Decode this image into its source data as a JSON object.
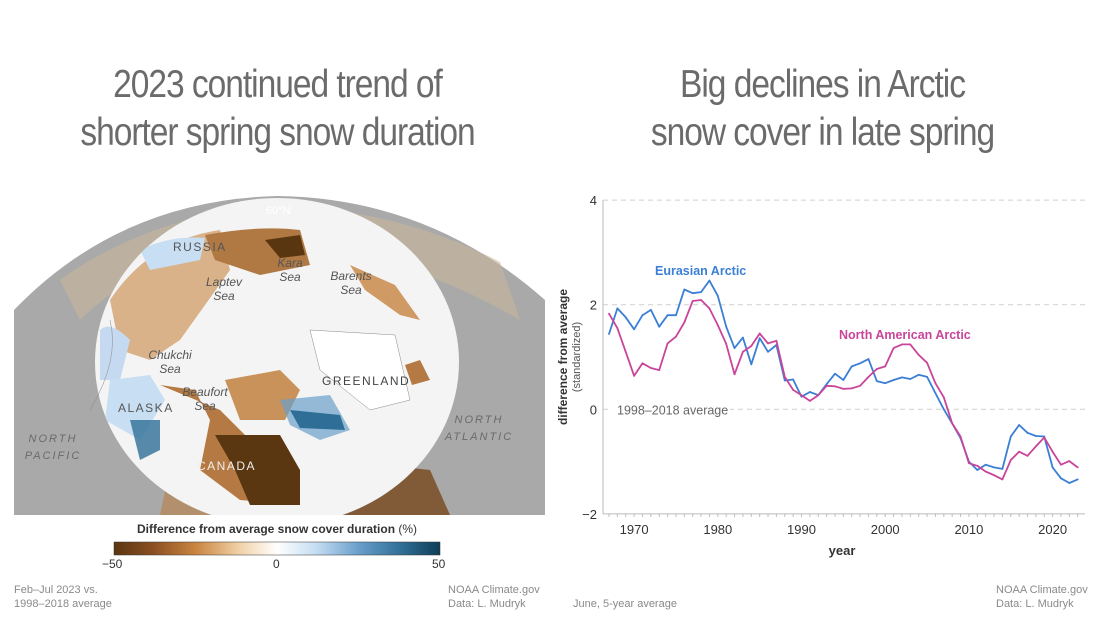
{
  "left": {
    "title_line1": "2023 continued trend of",
    "title_line2": "shorter spring snow duration",
    "map_labels": {
      "latitude": "60°N",
      "russia": "RUSSIA",
      "laptev": "Laptev Sea",
      "kara": "Kara Sea",
      "barents": "Barents Sea",
      "chukchi": "Chukchi Sea",
      "beaufort": "Beaufort Sea",
      "alaska": "ALASKA",
      "greenland": "GREENLAND",
      "canada": "CANADA",
      "north_pacific": "NORTH PACIFIC",
      "north_atlantic": "NORTH ATLANTIC"
    },
    "legend": {
      "title": "Difference from average snow cover duration",
      "unit": "(%)",
      "min": "−50",
      "mid": "0",
      "max": "50",
      "colors": [
        "#5a3610",
        "#a5602a",
        "#dd9a52",
        "#f7e3c6",
        "#ffffff",
        "#c8dff3",
        "#6a9fcb",
        "#2f6f97",
        "#0f3d57"
      ]
    },
    "note_line1": "Feb–Jul 2023 vs.",
    "note_line2": "1998–2018 average",
    "credit_line1": "NOAA Climate.gov",
    "credit_line2": "Data: L. Mudryk"
  },
  "right": {
    "title_line1": "Big declines in Arctic",
    "title_line2": "snow cover in late spring",
    "note": "June, 5-year average",
    "credit_line1": "NOAA Climate.gov",
    "credit_line2": "Data: L. Mudryk"
  },
  "chart_data": {
    "type": "line",
    "xlabel": "year",
    "ylabel": "difference from average",
    "ylabel_sub": "(standardized)",
    "xlim": [
      1967,
      2023
    ],
    "ylim": [
      -2,
      4
    ],
    "yticks": [
      "4",
      "2",
      "0",
      "−2"
    ],
    "ytick_values": [
      4,
      2,
      0,
      -2
    ],
    "xticks": [
      1970,
      1980,
      1990,
      2000,
      2010,
      2020
    ],
    "grid": "horizontal dashed",
    "reference_line": {
      "value": 0,
      "label": "1998–2018 average"
    },
    "x": [
      1967,
      1968,
      1969,
      1970,
      1971,
      1972,
      1973,
      1974,
      1975,
      1976,
      1977,
      1978,
      1979,
      1980,
      1981,
      1982,
      1983,
      1984,
      1985,
      1986,
      1987,
      1988,
      1989,
      1990,
      1991,
      1992,
      1993,
      1994,
      1995,
      1996,
      1997,
      1998,
      1999,
      2000,
      2001,
      2002,
      2003,
      2004,
      2005,
      2006,
      2007,
      2008,
      2009,
      2010,
      2011,
      2012,
      2013,
      2014,
      2015,
      2016,
      2017,
      2018,
      2019,
      2020,
      2021,
      2022,
      2023
    ],
    "series": [
      {
        "name": "Eurasian Arctic",
        "color": "#3a7fd5",
        "values": [
          1.44,
          1.93,
          1.76,
          1.53,
          1.8,
          1.9,
          1.58,
          1.8,
          1.8,
          2.29,
          2.22,
          2.24,
          2.46,
          2.17,
          1.58,
          1.17,
          1.37,
          0.86,
          1.36,
          1.1,
          1.23,
          0.55,
          0.57,
          0.24,
          0.33,
          0.27,
          0.48,
          0.68,
          0.56,
          0.82,
          0.88,
          0.96,
          0.54,
          0.5,
          0.56,
          0.61,
          0.58,
          0.66,
          0.62,
          0.31,
          0.0,
          -0.27,
          -0.55,
          -1.0,
          -1.16,
          -1.06,
          -1.11,
          -1.14,
          -0.52,
          -0.3,
          -0.45,
          -0.51,
          -0.52,
          -1.11,
          -1.32,
          -1.41,
          -1.34
        ]
      },
      {
        "name": "North American Arctic",
        "color": "#c9459a",
        "values": [
          1.83,
          1.55,
          1.1,
          0.64,
          0.88,
          0.79,
          0.75,
          1.26,
          1.39,
          1.66,
          2.07,
          2.09,
          1.93,
          1.61,
          1.25,
          0.67,
          1.1,
          1.21,
          1.45,
          1.26,
          1.31,
          0.62,
          0.37,
          0.27,
          0.16,
          0.27,
          0.45,
          0.44,
          0.39,
          0.4,
          0.45,
          0.62,
          0.77,
          0.82,
          1.17,
          1.24,
          1.24,
          1.04,
          0.89,
          0.5,
          0.23,
          -0.27,
          -0.52,
          -1.03,
          -1.08,
          -1.19,
          -1.26,
          -1.34,
          -0.97,
          -0.81,
          -0.89,
          -0.71,
          -0.54,
          -0.81,
          -1.06,
          -0.99,
          -1.11
        ]
      }
    ]
  }
}
